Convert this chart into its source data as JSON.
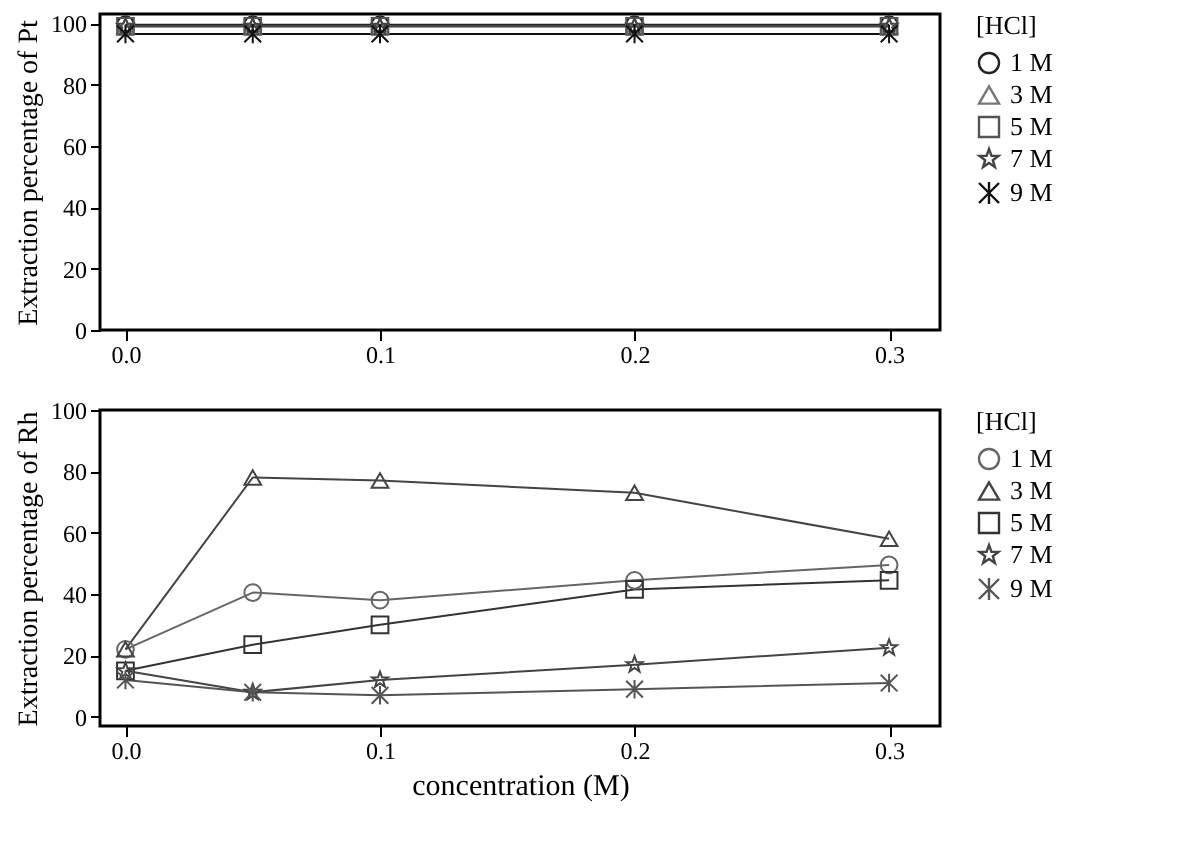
{
  "chart_data": [
    {
      "type": "line",
      "ylabel": "Extraction percentage of Pt",
      "legend_title": "[HCl]",
      "legend": "right",
      "grid": false,
      "x": [
        0,
        0.05,
        0.1,
        0.2,
        0.3
      ],
      "xlim": [
        -0.01,
        0.32
      ],
      "xticks": [
        {
          "value": 0,
          "label": "0.0"
        },
        {
          "value": 0.1,
          "label": "0.1"
        },
        {
          "value": 0.2,
          "label": "0.2"
        },
        {
          "value": 0.3,
          "label": "0.3"
        }
      ],
      "ylim": [
        0,
        103
      ],
      "yticks": [
        0,
        20,
        40,
        60,
        80,
        100
      ],
      "series": [
        {
          "name": "1 M",
          "color": "#222222",
          "marker": "circle",
          "values": [
            99.5,
            99.5,
            99.5,
            99.5,
            99.5
          ]
        },
        {
          "name": "3 M",
          "color": "#777777",
          "marker": "triangle",
          "values": [
            99,
            99,
            99,
            99,
            99
          ]
        },
        {
          "name": "5 M",
          "color": "#555555",
          "marker": "square",
          "values": [
            99,
            99,
            99,
            99,
            99
          ]
        },
        {
          "name": "7 M",
          "color": "#444444",
          "marker": "star",
          "values": [
            99,
            99,
            99,
            99,
            99
          ]
        },
        {
          "name": "9 M",
          "color": "#111111",
          "marker": "cross",
          "values": [
            96.5,
            96.5,
            96.5,
            96.5,
            96.5
          ]
        }
      ]
    },
    {
      "type": "line",
      "xlabel": "concentration (M)",
      "ylabel": "Extraction percentage of Rh",
      "legend_title": "[HCl]",
      "legend": "right",
      "grid": false,
      "x": [
        0,
        0.05,
        0.1,
        0.2,
        0.3
      ],
      "xlim": [
        -0.01,
        0.32
      ],
      "xticks": [
        {
          "value": 0,
          "label": "0.0"
        },
        {
          "value": 0.1,
          "label": "0.1"
        },
        {
          "value": 0.2,
          "label": "0.2"
        },
        {
          "value": 0.3,
          "label": "0.3"
        }
      ],
      "ylim": [
        -3,
        100
      ],
      "yticks": [
        0,
        20,
        40,
        60,
        80,
        100
      ],
      "series": [
        {
          "name": "1 M",
          "color": "#666666",
          "marker": "circle",
          "values": [
            22,
            40.5,
            38,
            44.5,
            49.5
          ]
        },
        {
          "name": "3 M",
          "color": "#444444",
          "marker": "triangle",
          "values": [
            22,
            78,
            77,
            73,
            58
          ]
        },
        {
          "name": "5 M",
          "color": "#333333",
          "marker": "square",
          "values": [
            15,
            23.5,
            30,
            41.5,
            44.5
          ]
        },
        {
          "name": "7 M",
          "color": "#444444",
          "marker": "star",
          "values": [
            15,
            8,
            12,
            17,
            22.5
          ]
        },
        {
          "name": "9 M",
          "color": "#555555",
          "marker": "cross",
          "values": [
            12,
            8,
            7,
            9,
            11
          ]
        }
      ]
    }
  ]
}
